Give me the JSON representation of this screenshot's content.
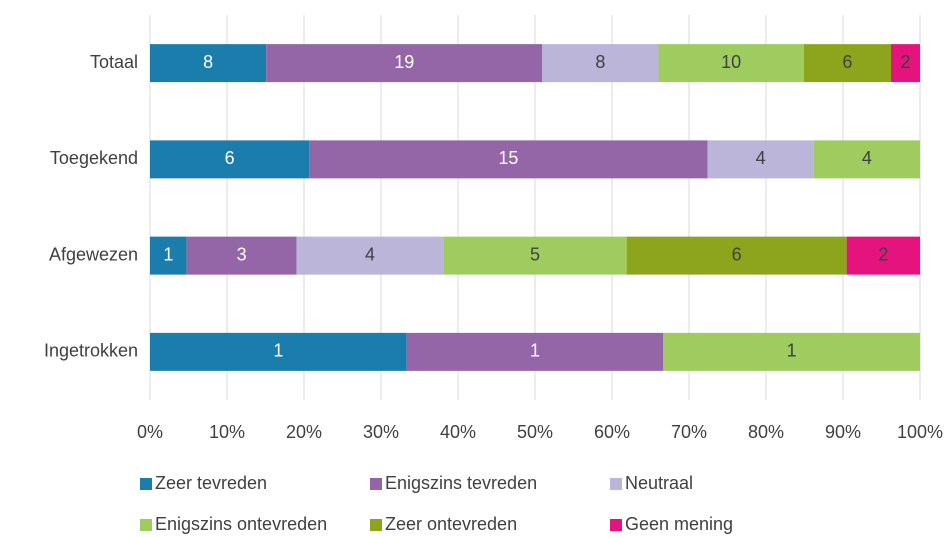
{
  "chart_data": {
    "type": "bar",
    "orientation": "horizontal",
    "stacking": "percent",
    "categories": [
      "Totaal",
      "Toegekend",
      "Afgewezen",
      "Ingetrokken"
    ],
    "series": [
      {
        "name": "Zeer tevreden",
        "color": "#1a7dab",
        "label_color": "#ffffff",
        "values": [
          8,
          6,
          1,
          1
        ]
      },
      {
        "name": "Enigszins tevreden",
        "color": "#9466a8",
        "label_color": "#ffffff",
        "values": [
          19,
          15,
          3,
          1
        ]
      },
      {
        "name": "Neutraal",
        "color": "#bbb5d9",
        "label_color": "#404040",
        "values": [
          8,
          4,
          4,
          null
        ]
      },
      {
        "name": "Enigszins ontevreden",
        "color": "#9fcc5e",
        "label_color": "#404040",
        "values": [
          10,
          4,
          5,
          1
        ]
      },
      {
        "name": "Zeer ontevreden",
        "color": "#8ca51c",
        "label_color": "#404040",
        "values": [
          6,
          null,
          6,
          null
        ]
      },
      {
        "name": "Geen mening",
        "color": "#e5137d",
        "label_color": "#404040",
        "values": [
          2,
          null,
          2,
          null
        ]
      }
    ],
    "xlim": [
      0,
      100
    ],
    "xticks": [
      {
        "value": 0,
        "label": "0%"
      },
      {
        "value": 10,
        "label": "10%"
      },
      {
        "value": 20,
        "label": "20%"
      },
      {
        "value": 30,
        "label": "30%"
      },
      {
        "value": 40,
        "label": "40%"
      },
      {
        "value": 50,
        "label": "50%"
      },
      {
        "value": 60,
        "label": "60%"
      },
      {
        "value": 70,
        "label": "70%"
      },
      {
        "value": 80,
        "label": "80%"
      },
      {
        "value": 90,
        "label": "90%"
      },
      {
        "value": 100,
        "label": "100%"
      }
    ],
    "grid": true,
    "legend": "bottom"
  }
}
